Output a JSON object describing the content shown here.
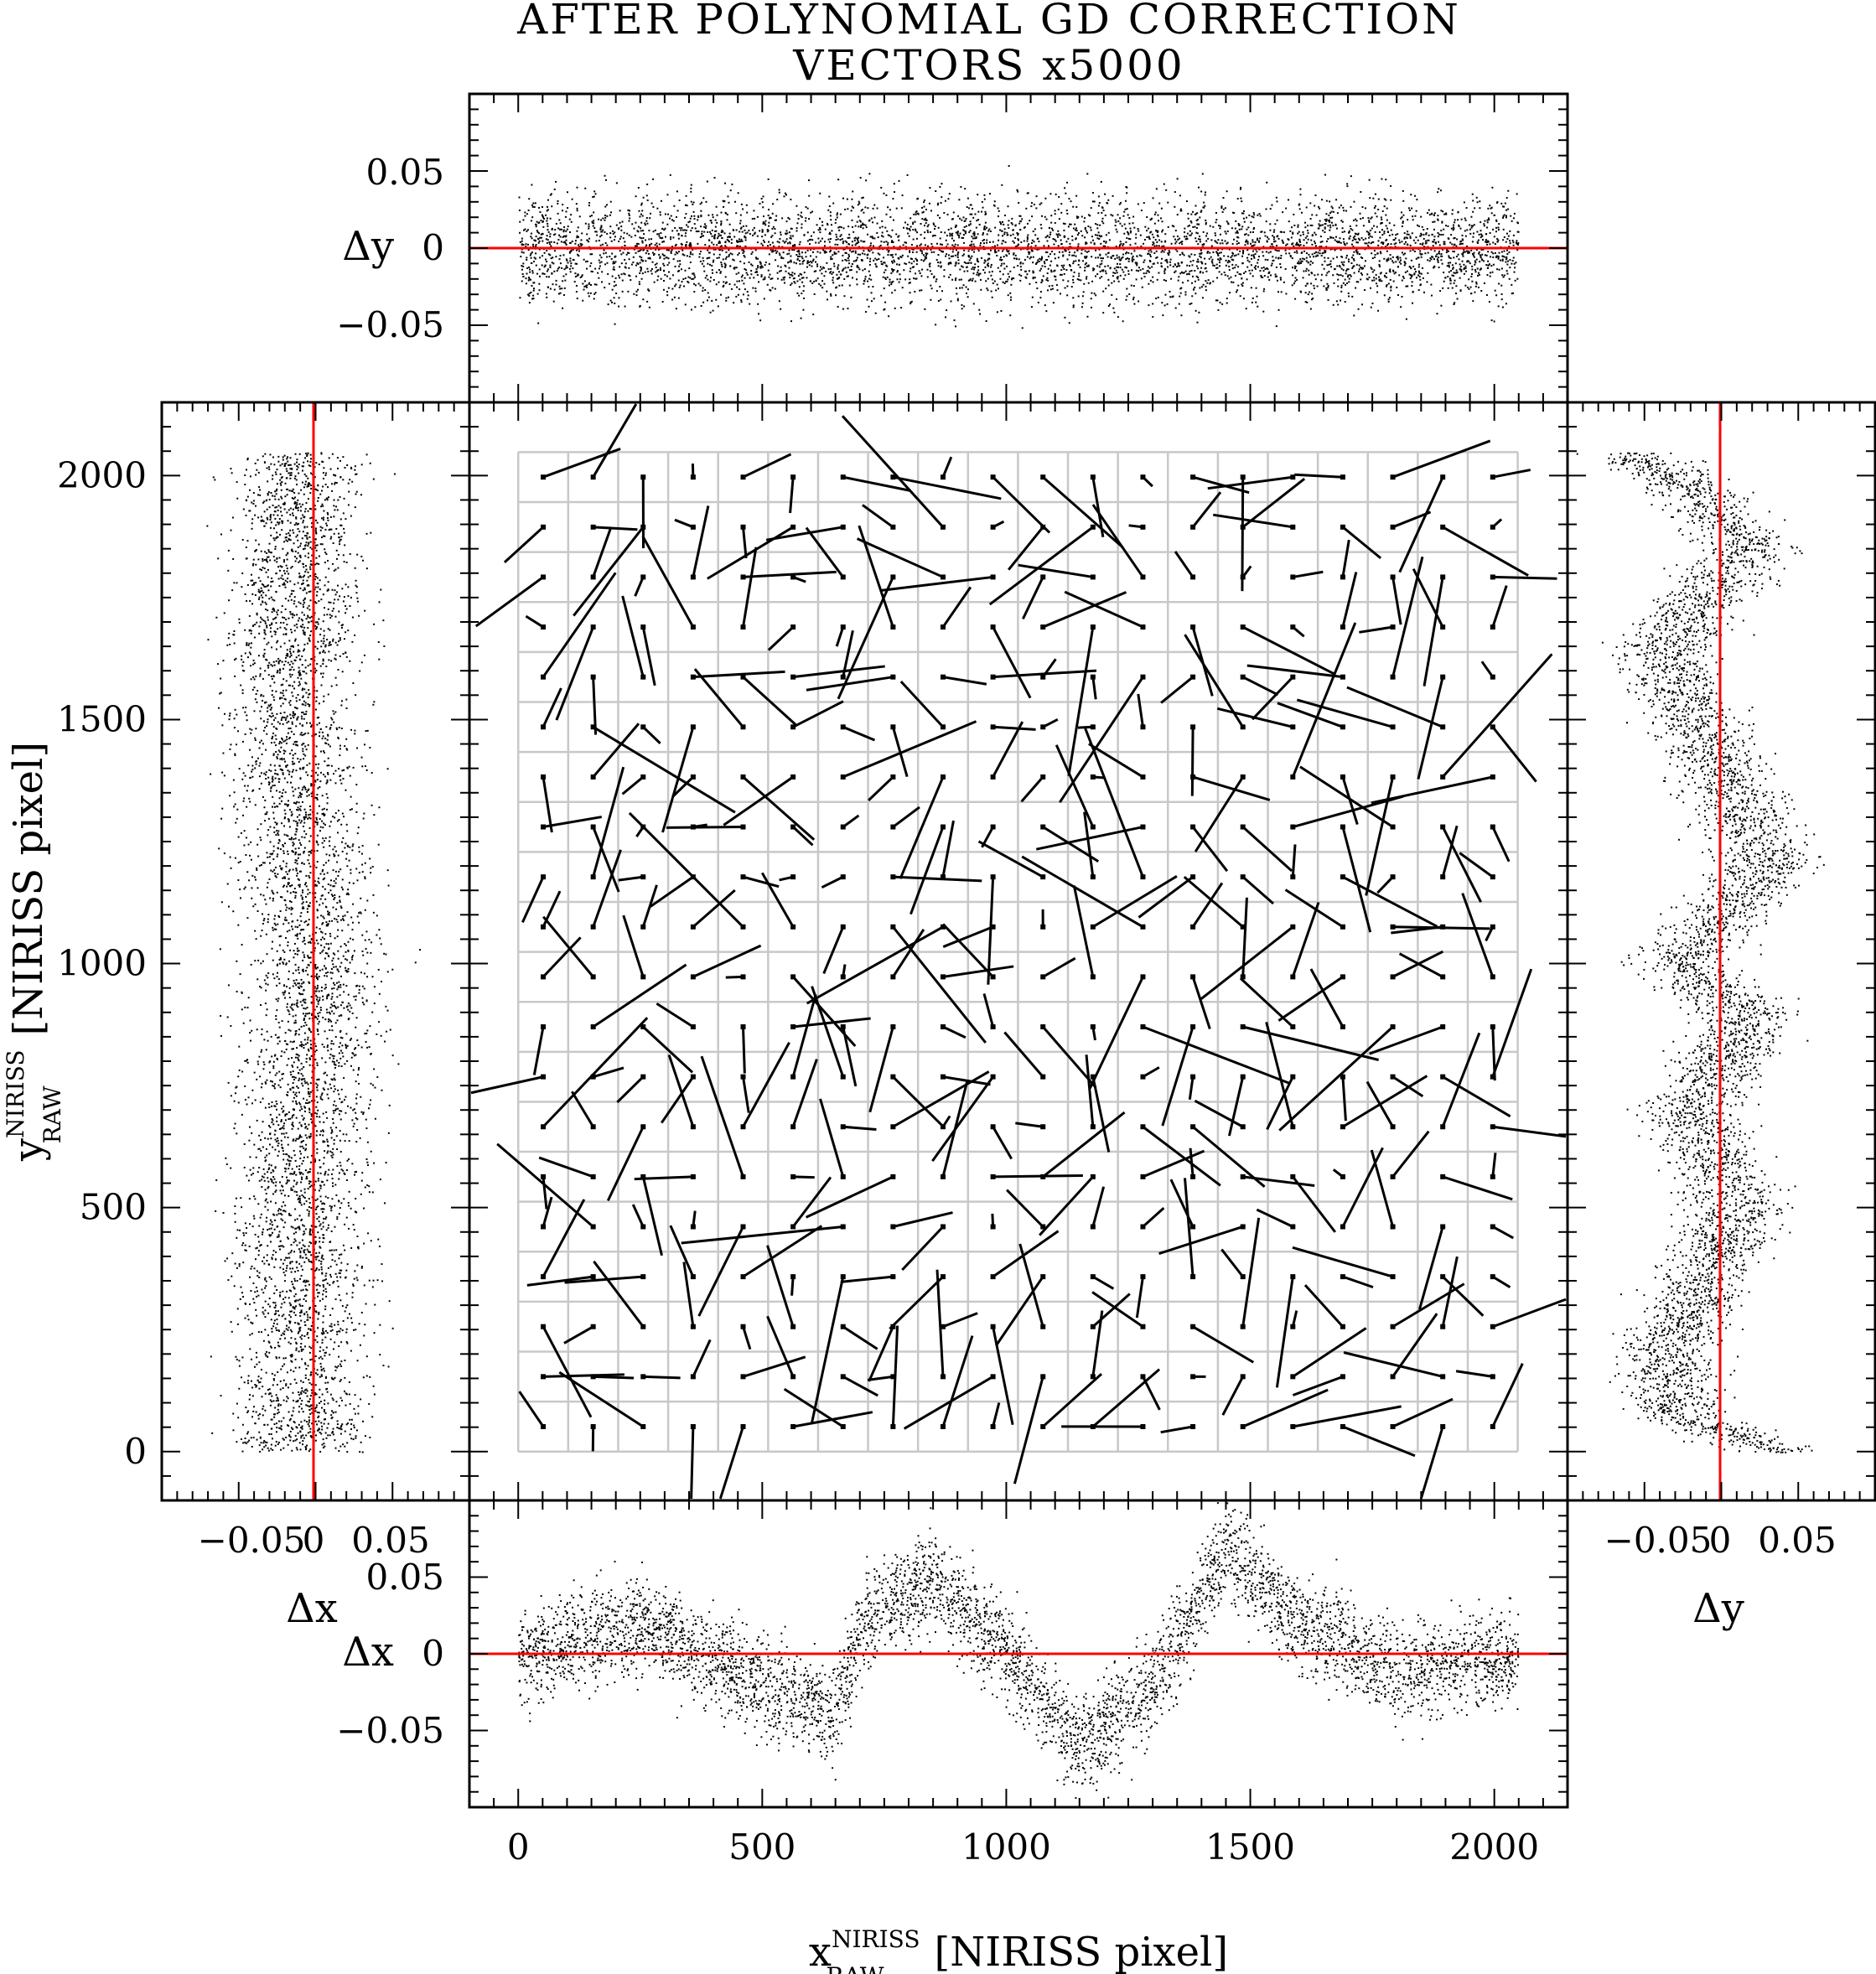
{
  "title_lines": [
    "AFTER POLYNOMIAL GD CORRECTION",
    "VECTORS x5000"
  ],
  "chart_data": [
    {
      "panel": "main",
      "type": "quiver",
      "xlabel_main": "x",
      "xlabel_sup": "NIRISS",
      "xlabel_sub": "RAW",
      "xlabel_rest": "[NIRISS pixel]",
      "ylabel_main": "y",
      "ylabel_sup": "NIRISS",
      "ylabel_sub": "RAW",
      "ylabel_rest": "[NIRISS pixel]",
      "xlim": [
        -100,
        2150
      ],
      "ylim": [
        -100,
        2150
      ],
      "xticks": [
        "0",
        "500",
        "1000",
        "1500",
        "2000"
      ],
      "yticks": [
        "0",
        "500",
        "1000",
        "1500",
        "2000"
      ],
      "xtick_values": [
        0,
        500,
        1000,
        1500,
        2000
      ],
      "ytick_values": [
        0,
        500,
        1000,
        1500,
        2000
      ],
      "grid": true,
      "grid_extent": [
        0,
        2048
      ],
      "grid_cells": 20,
      "vector_scale": 5000,
      "vector_node_step": 102.4,
      "vector_node_offset": 51.2,
      "vectors_note": "residual vectors at grid-cell centres, magnified x5000"
    },
    {
      "panel": "top",
      "type": "scatter",
      "ylabel": "Δy",
      "x_range": [
        0,
        2048
      ],
      "ylim": [
        -0.1,
        0.1
      ],
      "yticks": [
        "0.05",
        "0",
        "−0.05"
      ],
      "ytick_values": [
        0.05,
        0,
        -0.05
      ],
      "reference_line": 0,
      "reference_color": "#ff0000",
      "spread": 0.025
    },
    {
      "panel": "bottom",
      "type": "scatter",
      "ylabel": "Δx",
      "x_range": [
        0,
        2048
      ],
      "ylim": [
        -0.1,
        0.1
      ],
      "yticks": [
        "0.05",
        "0",
        "−0.05"
      ],
      "ytick_values": [
        0.05,
        0,
        -0.05
      ],
      "reference_line": 0,
      "reference_color": "#ff0000",
      "trend": [
        [
          0,
          0.0
        ],
        [
          250,
          0.02
        ],
        [
          500,
          -0.02
        ],
        [
          650,
          -0.04
        ],
        [
          700,
          0.02
        ],
        [
          850,
          0.05
        ],
        [
          1000,
          0.0
        ],
        [
          1150,
          -0.06
        ],
        [
          1300,
          -0.02
        ],
        [
          1450,
          0.07
        ],
        [
          1600,
          0.02
        ],
        [
          1800,
          -0.01
        ],
        [
          2048,
          0.0
        ]
      ],
      "spread": 0.022
    },
    {
      "panel": "left",
      "type": "scatter",
      "xlabel": "Δx",
      "y_range": [
        0,
        2048
      ],
      "xlim": [
        -0.1,
        0.1
      ],
      "xticks": [
        "−0.05",
        "0",
        "0.05"
      ],
      "xtick_values": [
        -0.05,
        0,
        0.05
      ],
      "reference_line": 0,
      "reference_color": "#ff0000",
      "trend": [
        [
          0,
          -0.01
        ],
        [
          500,
          -0.01
        ],
        [
          1000,
          0.0
        ],
        [
          1500,
          -0.015
        ],
        [
          2048,
          -0.01
        ]
      ],
      "spread": 0.03
    },
    {
      "panel": "right",
      "type": "scatter",
      "xlabel": "Δy",
      "y_range": [
        0,
        2048
      ],
      "xlim": [
        -0.1,
        0.1
      ],
      "xticks": [
        "−0.05",
        "0",
        "0.05"
      ],
      "xtick_values": [
        -0.05,
        0,
        0.05
      ],
      "reference_line": 0,
      "reference_color": "#ff0000",
      "trend": [
        [
          0,
          0.04
        ],
        [
          80,
          -0.03
        ],
        [
          200,
          -0.035
        ],
        [
          500,
          0.01
        ],
        [
          700,
          -0.02
        ],
        [
          900,
          0.02
        ],
        [
          1000,
          -0.03
        ],
        [
          1200,
          0.03
        ],
        [
          1400,
          0.0
        ],
        [
          1650,
          -0.04
        ],
        [
          1850,
          0.02
        ],
        [
          2000,
          -0.03
        ],
        [
          2048,
          -0.06
        ]
      ],
      "spread": 0.022
    }
  ]
}
